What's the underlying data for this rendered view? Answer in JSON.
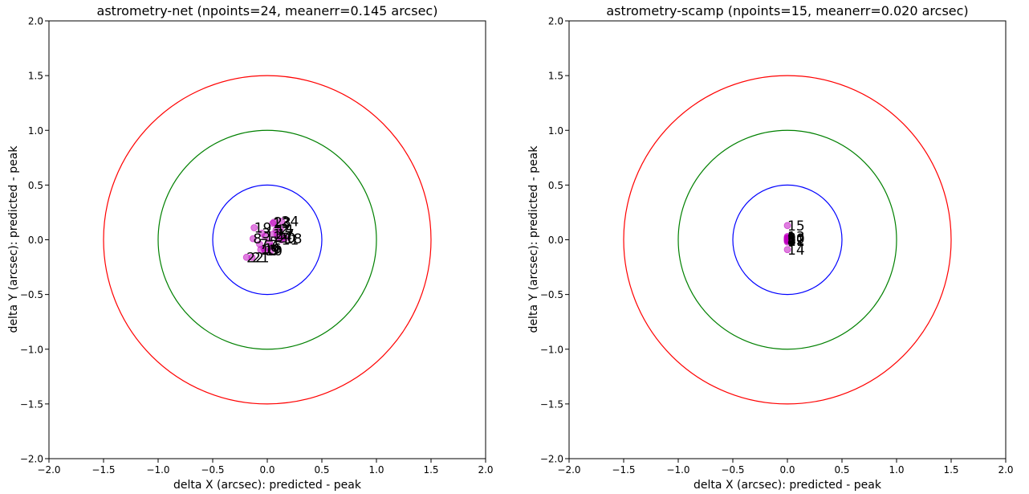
{
  "chart_data": [
    {
      "type": "scatter",
      "title": "astrometry-net (npoints=24, meanerr=0.145 arcsec)",
      "xlabel": "delta X (arcsec): predicted - peak",
      "ylabel": "delta Y (arcsec): predicted - peak",
      "xlim": [
        -2.0,
        2.0
      ],
      "ylim": [
        -2.0,
        2.0
      ],
      "xticks": [
        "−2.0",
        "−1.5",
        "−1.0",
        "−0.5",
        "0.0",
        "0.5",
        "1.0",
        "1.5",
        "2.0"
      ],
      "yticks": [
        "−2.0",
        "−1.5",
        "−1.0",
        "−0.5",
        "0.0",
        "0.5",
        "1.0",
        "1.5",
        "2.0"
      ],
      "grid": false,
      "circles": [
        {
          "radius": 0.5,
          "color": "#0000ff"
        },
        {
          "radius": 1.0,
          "color": "#008000"
        },
        {
          "radius": 1.5,
          "color": "#ff0000"
        }
      ],
      "marker_color": "#bf00bf",
      "points": [
        {
          "label": "1",
          "x": 0.05,
          "y": 0.05
        },
        {
          "label": "2",
          "x": 0.12,
          "y": 0.1
        },
        {
          "label": "3",
          "x": -0.05,
          "y": 0.06
        },
        {
          "label": "4",
          "x": 0.15,
          "y": 0.03
        },
        {
          "label": "5",
          "x": 0.02,
          "y": -0.02
        },
        {
          "label": "6",
          "x": 0.04,
          "y": -0.06
        },
        {
          "label": "7",
          "x": -0.07,
          "y": -0.04
        },
        {
          "label": "8",
          "x": -0.13,
          "y": 0.01
        },
        {
          "label": "9",
          "x": 0.03,
          "y": -0.1
        },
        {
          "label": "10",
          "x": -0.02,
          "y": -0.1
        },
        {
          "label": "11",
          "x": 0.13,
          "y": 0.0
        },
        {
          "label": "12",
          "x": -0.02,
          "y": 0.03
        },
        {
          "label": "13",
          "x": 0.05,
          "y": 0.15
        },
        {
          "label": "14",
          "x": 0.08,
          "y": 0.09
        },
        {
          "label": "15",
          "x": -0.06,
          "y": -0.09
        },
        {
          "label": "16",
          "x": -0.03,
          "y": -0.08
        },
        {
          "label": "17",
          "x": 0.09,
          "y": 0.05
        },
        {
          "label": "18",
          "x": 0.16,
          "y": 0.01
        },
        {
          "label": "19",
          "x": -0.12,
          "y": 0.11
        },
        {
          "label": "20",
          "x": 0.1,
          "y": 0.02
        },
        {
          "label": "21",
          "x": -0.14,
          "y": -0.16
        },
        {
          "label": "22",
          "x": -0.19,
          "y": -0.16
        },
        {
          "label": "23",
          "x": 0.06,
          "y": 0.16
        },
        {
          "label": "24",
          "x": 0.13,
          "y": 0.17
        }
      ]
    },
    {
      "type": "scatter",
      "title": "astrometry-scamp (npoints=15, meanerr=0.020 arcsec)",
      "xlabel": "delta X (arcsec): predicted - peak",
      "ylabel": "delta Y (arcsec): predicted - peak",
      "xlim": [
        -2.0,
        2.0
      ],
      "ylim": [
        -2.0,
        2.0
      ],
      "xticks": [
        "−2.0",
        "−1.5",
        "−1.0",
        "−0.5",
        "0.0",
        "0.5",
        "1.0",
        "1.5",
        "2.0"
      ],
      "yticks": [
        "−2.0",
        "−1.5",
        "−1.0",
        "−0.5",
        "0.0",
        "0.5",
        "1.0",
        "1.5",
        "2.0"
      ],
      "grid": false,
      "circles": [
        {
          "radius": 0.5,
          "color": "#0000ff"
        },
        {
          "radius": 1.0,
          "color": "#008000"
        },
        {
          "radius": 1.5,
          "color": "#ff0000"
        }
      ],
      "marker_color": "#bf00bf",
      "points": [
        {
          "label": "1",
          "x": 0.0,
          "y": 0.01
        },
        {
          "label": "2",
          "x": 0.0,
          "y": 0.0
        },
        {
          "label": "3",
          "x": 0.0,
          "y": 0.02
        },
        {
          "label": "4",
          "x": 0.0,
          "y": -0.01
        },
        {
          "label": "5",
          "x": 0.0,
          "y": 0.0
        },
        {
          "label": "6",
          "x": 0.0,
          "y": 0.01
        },
        {
          "label": "7",
          "x": 0.0,
          "y": -0.02
        },
        {
          "label": "8",
          "x": 0.0,
          "y": 0.0
        },
        {
          "label": "9",
          "x": 0.0,
          "y": 0.02
        },
        {
          "label": "10",
          "x": 0.0,
          "y": 0.01
        },
        {
          "label": "11",
          "x": 0.0,
          "y": -0.01
        },
        {
          "label": "12",
          "x": 0.0,
          "y": 0.0
        },
        {
          "label": "13",
          "x": 0.0,
          "y": 0.03
        },
        {
          "label": "14",
          "x": 0.0,
          "y": -0.09
        },
        {
          "label": "15",
          "x": 0.0,
          "y": 0.13
        }
      ]
    }
  ]
}
